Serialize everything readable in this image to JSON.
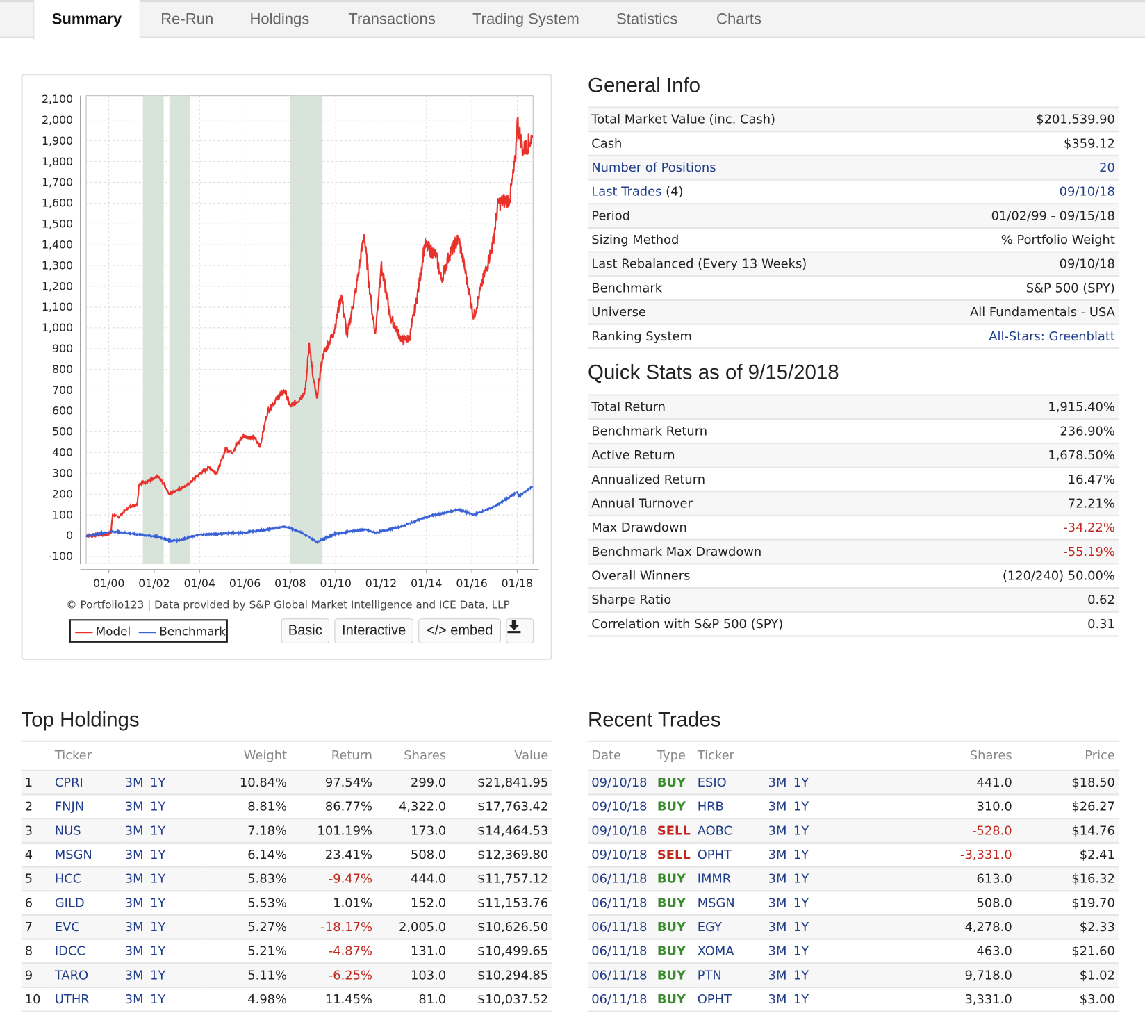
{
  "tabs": [
    "Summary",
    "Re-Run",
    "Holdings",
    "Transactions",
    "Trading System",
    "Statistics",
    "Charts"
  ],
  "active_tab": "Summary",
  "colors": {
    "model": "#e8312b",
    "benchmark": "#3a62d6",
    "recession_band": "#d8e3da",
    "link": "#1f3d8a",
    "buy": "#3a8a2e",
    "sell": "#c0281e"
  },
  "chart_data": {
    "type": "line",
    "title": "",
    "xlabel": "",
    "ylabel": "",
    "ylim": [
      -135,
      2117
    ],
    "yticks": [
      -100,
      0,
      100,
      200,
      300,
      400,
      500,
      600,
      700,
      800,
      900,
      1000,
      1100,
      1200,
      1300,
      1400,
      1500,
      1600,
      1700,
      1800,
      1900,
      2000,
      2100
    ],
    "ytick_labels": [
      "-100",
      "0",
      "100",
      "200",
      "300",
      "400",
      "500",
      "600",
      "700",
      "800",
      "900",
      "1,000",
      "1,100",
      "1,200",
      "1,300",
      "1,400",
      "1,500",
      "1,600",
      "1,700",
      "1,800",
      "1,900",
      "2,000",
      "2,100"
    ],
    "xtick_labels": [
      "01/00",
      "01/02",
      "01/04",
      "01/06",
      "01/08",
      "01/10",
      "01/12",
      "01/14",
      "01/16",
      "01/18"
    ],
    "grid": true,
    "shaded_periods": [
      [
        "2001-07",
        "2002-06"
      ],
      [
        "2002-09",
        "2003-08"
      ],
      [
        "2008-01",
        "2009-06"
      ]
    ],
    "series": [
      {
        "name": "Model",
        "points": [
          [
            "1999-01",
            0
          ],
          [
            "1999-12",
            5
          ],
          [
            "2000-02",
            10
          ],
          [
            "2000-03",
            100
          ],
          [
            "2000-06",
            90
          ],
          [
            "2000-12",
            140
          ],
          [
            "2001-04",
            150
          ],
          [
            "2001-05",
            250
          ],
          [
            "2001-12",
            270
          ],
          [
            "2002-03",
            285
          ],
          [
            "2002-06",
            250
          ],
          [
            "2002-09",
            200
          ],
          [
            "2003-01",
            220
          ],
          [
            "2003-06",
            240
          ],
          [
            "2003-12",
            290
          ],
          [
            "2004-06",
            330
          ],
          [
            "2004-10",
            300
          ],
          [
            "2005-03",
            420
          ],
          [
            "2005-06",
            400
          ],
          [
            "2005-12",
            480
          ],
          [
            "2006-06",
            470
          ],
          [
            "2006-09",
            430
          ],
          [
            "2007-01",
            600
          ],
          [
            "2007-06",
            660
          ],
          [
            "2007-10",
            700
          ],
          [
            "2008-01",
            620
          ],
          [
            "2008-06",
            660
          ],
          [
            "2008-09",
            700
          ],
          [
            "2008-11",
            930
          ],
          [
            "2009-01",
            760
          ],
          [
            "2009-03",
            660
          ],
          [
            "2009-06",
            860
          ],
          [
            "2009-12",
            980
          ],
          [
            "2010-04",
            1160
          ],
          [
            "2010-07",
            960
          ],
          [
            "2010-12",
            1200
          ],
          [
            "2011-04",
            1450
          ],
          [
            "2011-08",
            1100
          ],
          [
            "2011-10",
            970
          ],
          [
            "2012-01",
            1300
          ],
          [
            "2012-06",
            1050
          ],
          [
            "2012-12",
            940
          ],
          [
            "2013-04",
            950
          ],
          [
            "2013-09",
            1200
          ],
          [
            "2013-12",
            1400
          ],
          [
            "2014-06",
            1350
          ],
          [
            "2014-09",
            1230
          ],
          [
            "2015-01",
            1350
          ],
          [
            "2015-06",
            1430
          ],
          [
            "2015-10",
            1250
          ],
          [
            "2016-02",
            1050
          ],
          [
            "2016-06",
            1200
          ],
          [
            "2016-12",
            1400
          ],
          [
            "2017-03",
            1600
          ],
          [
            "2017-09",
            1620
          ],
          [
            "2017-12",
            1800
          ],
          [
            "2018-01",
            2000
          ],
          [
            "2018-04",
            1850
          ],
          [
            "2018-09",
            1915
          ]
        ]
      },
      {
        "name": "Benchmark",
        "points": [
          [
            "1999-01",
            0
          ],
          [
            "2000-03",
            20
          ],
          [
            "2001-01",
            10
          ],
          [
            "2002-03",
            -5
          ],
          [
            "2002-10",
            -25
          ],
          [
            "2003-03",
            -20
          ],
          [
            "2004-01",
            5
          ],
          [
            "2005-01",
            10
          ],
          [
            "2006-01",
            15
          ],
          [
            "2007-01",
            30
          ],
          [
            "2007-10",
            45
          ],
          [
            "2008-06",
            20
          ],
          [
            "2009-03",
            -30
          ],
          [
            "2010-01",
            10
          ],
          [
            "2011-04",
            30
          ],
          [
            "2011-10",
            15
          ],
          [
            "2012-12",
            45
          ],
          [
            "2014-01",
            90
          ],
          [
            "2015-06",
            125
          ],
          [
            "2016-02",
            100
          ],
          [
            "2017-01",
            140
          ],
          [
            "2018-01",
            210
          ],
          [
            "2018-02",
            190
          ],
          [
            "2018-09",
            237
          ]
        ]
      }
    ]
  },
  "chart_footer": {
    "credit": "© Portfolio123 | Data provided by S&P Global Market Intelligence and ICE Data, LLP",
    "legend_model": "Model",
    "legend_benchmark": "Benchmark",
    "basic": "Basic",
    "interactive": "Interactive",
    "embed": "</> embed",
    "download_icon": "download-icon"
  },
  "general_info": {
    "title": "General Info",
    "rows": [
      {
        "label": "Total Market Value (inc. Cash)",
        "value": "$201,539.90"
      },
      {
        "label": "Cash",
        "value": "$359.12"
      },
      {
        "label": "Number of Positions",
        "value": "20",
        "link": true
      },
      {
        "label": "Last Trades",
        "suffix": " (4)",
        "value": "09/10/18",
        "link": true
      },
      {
        "label": "Period",
        "value": "01/02/99 - 09/15/18"
      },
      {
        "label": "Sizing Method",
        "value": "% Portfolio Weight"
      },
      {
        "label": "Last Rebalanced (Every 13 Weeks)",
        "value": "09/10/18"
      },
      {
        "label": "Benchmark",
        "value": "S&P 500 (SPY)"
      },
      {
        "label": "Universe",
        "value": "All Fundamentals - USA"
      },
      {
        "label": "Ranking System",
        "value": "All-Stars: Greenblatt",
        "value_link": true
      }
    ]
  },
  "quick_stats": {
    "title": "Quick Stats as of 9/15/2018",
    "rows": [
      {
        "label": "Total Return",
        "value": "1,915.40%"
      },
      {
        "label": "Benchmark Return",
        "value": "236.90%"
      },
      {
        "label": "Active Return",
        "value": "1,678.50%"
      },
      {
        "label": "Annualized Return",
        "value": "16.47%"
      },
      {
        "label": "Annual Turnover",
        "value": "72.21%"
      },
      {
        "label": "Max Drawdown",
        "value": "-34.22%",
        "neg": true
      },
      {
        "label": "Benchmark Max Drawdown",
        "value": "-55.19%",
        "neg": true
      },
      {
        "label": "Overall Winners",
        "value": "(120/240) 50.00%"
      },
      {
        "label": "Sharpe Ratio",
        "value": "0.62"
      },
      {
        "label": "Correlation with S&P 500 (SPY)",
        "value": "0.31"
      }
    ]
  },
  "top_holdings": {
    "title": "Top Holdings",
    "headers": [
      "Ticker",
      "Weight",
      "Return",
      "Shares",
      "Value"
    ],
    "link_3m": "3M",
    "link_1y": "1Y",
    "rows": [
      [
        "1",
        "CPRI",
        "10.84%",
        "97.54%",
        "299.0",
        "$21,841.95"
      ],
      [
        "2",
        "FNJN",
        "8.81%",
        "86.77%",
        "4,322.0",
        "$17,763.42"
      ],
      [
        "3",
        "NUS",
        "7.18%",
        "101.19%",
        "173.0",
        "$14,464.53"
      ],
      [
        "4",
        "MSGN",
        "6.14%",
        "23.41%",
        "508.0",
        "$12,369.80"
      ],
      [
        "5",
        "HCC",
        "5.83%",
        "-9.47%",
        "444.0",
        "$11,757.12"
      ],
      [
        "6",
        "GILD",
        "5.53%",
        "1.01%",
        "152.0",
        "$11,153.76"
      ],
      [
        "7",
        "EVC",
        "5.27%",
        "-18.17%",
        "2,005.0",
        "$10,626.50"
      ],
      [
        "8",
        "IDCC",
        "5.21%",
        "-4.87%",
        "131.0",
        "$10,499.65"
      ],
      [
        "9",
        "TARO",
        "5.11%",
        "-6.25%",
        "103.0",
        "$10,294.85"
      ],
      [
        "10",
        "UTHR",
        "4.98%",
        "11.45%",
        "81.0",
        "$10,037.52"
      ]
    ]
  },
  "recent_trades": {
    "title": "Recent Trades",
    "headers": [
      "Date",
      "Type",
      "Ticker",
      "Shares",
      "Price"
    ],
    "link_3m": "3M",
    "link_1y": "1Y",
    "rows": [
      [
        "09/10/18",
        "BUY",
        "ESIO",
        "441.0",
        "$18.50"
      ],
      [
        "09/10/18",
        "BUY",
        "HRB",
        "310.0",
        "$26.27"
      ],
      [
        "09/10/18",
        "SELL",
        "AOBC",
        "-528.0",
        "$14.76"
      ],
      [
        "09/10/18",
        "SELL",
        "OPHT",
        "-3,331.0",
        "$2.41"
      ],
      [
        "06/11/18",
        "BUY",
        "IMMR",
        "613.0",
        "$16.32"
      ],
      [
        "06/11/18",
        "BUY",
        "MSGN",
        "508.0",
        "$19.70"
      ],
      [
        "06/11/18",
        "BUY",
        "EGY",
        "4,278.0",
        "$2.33"
      ],
      [
        "06/11/18",
        "BUY",
        "XOMA",
        "463.0",
        "$21.60"
      ],
      [
        "06/11/18",
        "BUY",
        "PTN",
        "9,718.0",
        "$1.02"
      ],
      [
        "06/11/18",
        "BUY",
        "OPHT",
        "3,331.0",
        "$3.00"
      ]
    ]
  }
}
